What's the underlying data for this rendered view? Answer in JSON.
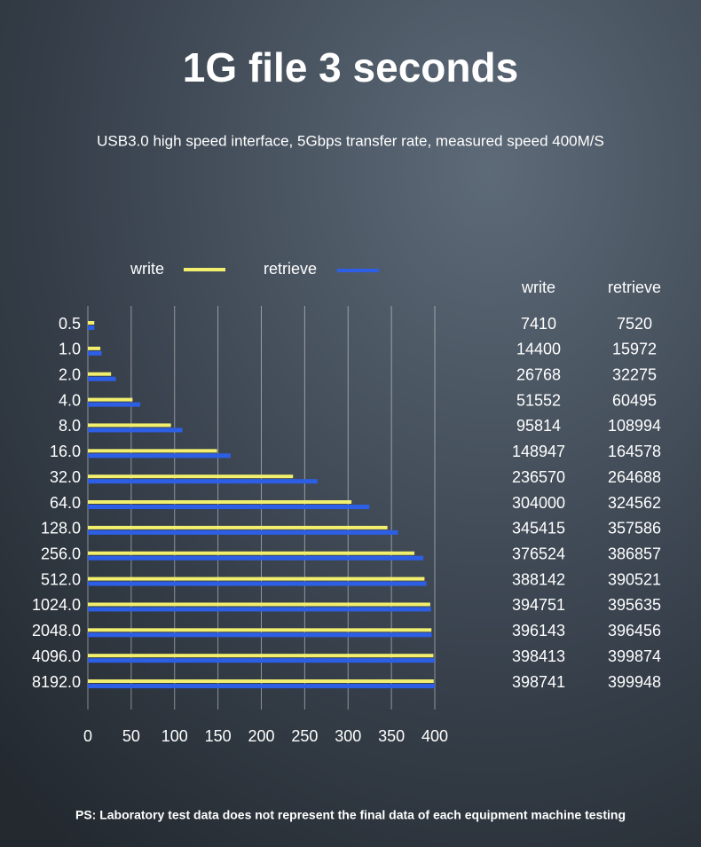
{
  "chart_data": {
    "type": "bar",
    "orientation": "horizontal",
    "title": "1G file 3 seconds",
    "subtitle": "USB3.0 high speed interface, 5Gbps transfer rate, measured speed 400M/S",
    "categories": [
      "0.5",
      "1.0",
      "2.0",
      "4.0",
      "8.0",
      "16.0",
      "32.0",
      "64.0",
      "128.0",
      "256.0",
      "512.0",
      "1024.0",
      "2048.0",
      "4096.0",
      "8192.0"
    ],
    "series": [
      {
        "name": "write",
        "color": "#f2ef6e",
        "values": [
          7.41,
          14.4,
          26.768,
          51.552,
          95.814,
          148.947,
          236.57,
          304,
          345.415,
          376.524,
          388.142,
          394.751,
          396.143,
          398.413,
          398.741
        ],
        "value_labels": [
          "7410",
          "14400",
          "26768",
          "51552",
          "95814",
          "148947",
          "236570",
          "304000",
          "345415",
          "376524",
          "388142",
          "394751",
          "396143",
          "398413",
          "398741"
        ]
      },
      {
        "name": "retrieve",
        "color": "#2d5fe6",
        "values": [
          7.52,
          15.972,
          32.275,
          60.495,
          108.994,
          164.578,
          264.688,
          324.562,
          357.586,
          386.857,
          390.521,
          395.635,
          396.456,
          399.874,
          399.948
        ],
        "value_labels": [
          "7520",
          "15972",
          "32275",
          "60495",
          "108994",
          "164578",
          "264688",
          "324562",
          "357586",
          "386857",
          "390521",
          "395635",
          "396456",
          "399874",
          "399948"
        ]
      }
    ],
    "xlim": [
      0,
      400
    ],
    "xticks": [
      0,
      50,
      100,
      150,
      200,
      250,
      300,
      350,
      400
    ],
    "grid": true,
    "note": "PS: Laboratory test data does not represent the final data of each equipment machine testing"
  }
}
